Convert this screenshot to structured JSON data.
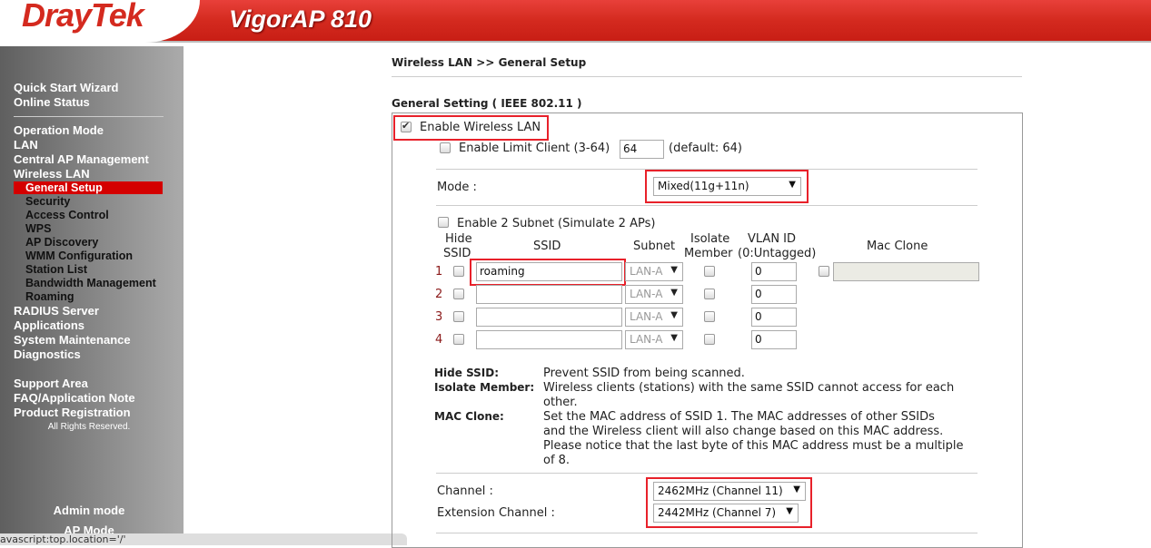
{
  "header": {
    "brand": "DrayTek",
    "product": "VigorAP 810"
  },
  "sidebar": {
    "items": [
      "Quick Start Wizard",
      "Online Status",
      "Operation Mode",
      "LAN",
      "Central AP Management",
      "Wireless LAN"
    ],
    "wireless_sub": [
      "General Setup",
      "Security",
      "Access Control",
      "WPS",
      "AP Discovery",
      "WMM Configuration",
      "Station List",
      "Bandwidth Management",
      "Roaming"
    ],
    "items2": [
      "RADIUS Server",
      "Applications",
      "System Maintenance",
      "Diagnostics"
    ],
    "support": [
      "Support Area",
      "FAQ/Application Note",
      "Product Registration"
    ],
    "rights": "All Rights Reserved.",
    "admin_mode": "Admin mode",
    "ap_mode": "AP Mode"
  },
  "status_bar": "avascript:top.location='/'",
  "breadcrumb": "Wireless LAN >> General Setup",
  "section_title": "General Setting ( IEEE 802.11 )",
  "form": {
    "enable_wlan": {
      "label": "Enable Wireless LAN",
      "checked": true
    },
    "limit_client": {
      "label": "Enable Limit Client (3-64)",
      "value": "64",
      "default": "(default: 64)",
      "checked": false
    },
    "mode": {
      "label": "Mode :",
      "value": "Mixed(11g+11n)"
    },
    "two_subnet": {
      "label": "Enable 2 Subnet (Simulate 2 APs)",
      "checked": false
    },
    "headers": {
      "hide1": "Hide",
      "hide2": "SSID",
      "ssid": "SSID",
      "subnet": "Subnet",
      "iso1": "Isolate",
      "iso2": "Member",
      "vlan1": "VLAN ID",
      "vlan2": "(0:Untagged)",
      "mac": "Mac Clone"
    },
    "rows": [
      {
        "n": "1",
        "ssid": "roaming",
        "subnet": "LAN-A",
        "vlan": "0"
      },
      {
        "n": "2",
        "ssid": "",
        "subnet": "LAN-A",
        "vlan": "0"
      },
      {
        "n": "3",
        "ssid": "",
        "subnet": "LAN-A",
        "vlan": "0"
      },
      {
        "n": "4",
        "ssid": "",
        "subnet": "LAN-A",
        "vlan": "0"
      }
    ],
    "notes": [
      {
        "term": "Hide SSID:",
        "lines": [
          "Prevent SSID from being scanned."
        ]
      },
      {
        "term": "Isolate Member:",
        "lines": [
          "Wireless clients (stations) with the same SSID cannot access for each",
          "other."
        ]
      },
      {
        "term": "MAC Clone:",
        "lines": [
          "Set the MAC address of SSID 1. The MAC addresses of other SSIDs",
          "and the Wireless client will also change based on this MAC address.",
          "Please notice that the last byte of this MAC address must be a multiple",
          "of 8."
        ]
      }
    ],
    "channel": {
      "label": "Channel :",
      "value": "2462MHz (Channel 11)"
    },
    "ext_channel": {
      "label": "Extension Channel :",
      "value": "2442MHz (Channel 7)"
    }
  },
  "colors": {
    "brand_red": "#d42a1f",
    "highlight": "#e8212a"
  }
}
